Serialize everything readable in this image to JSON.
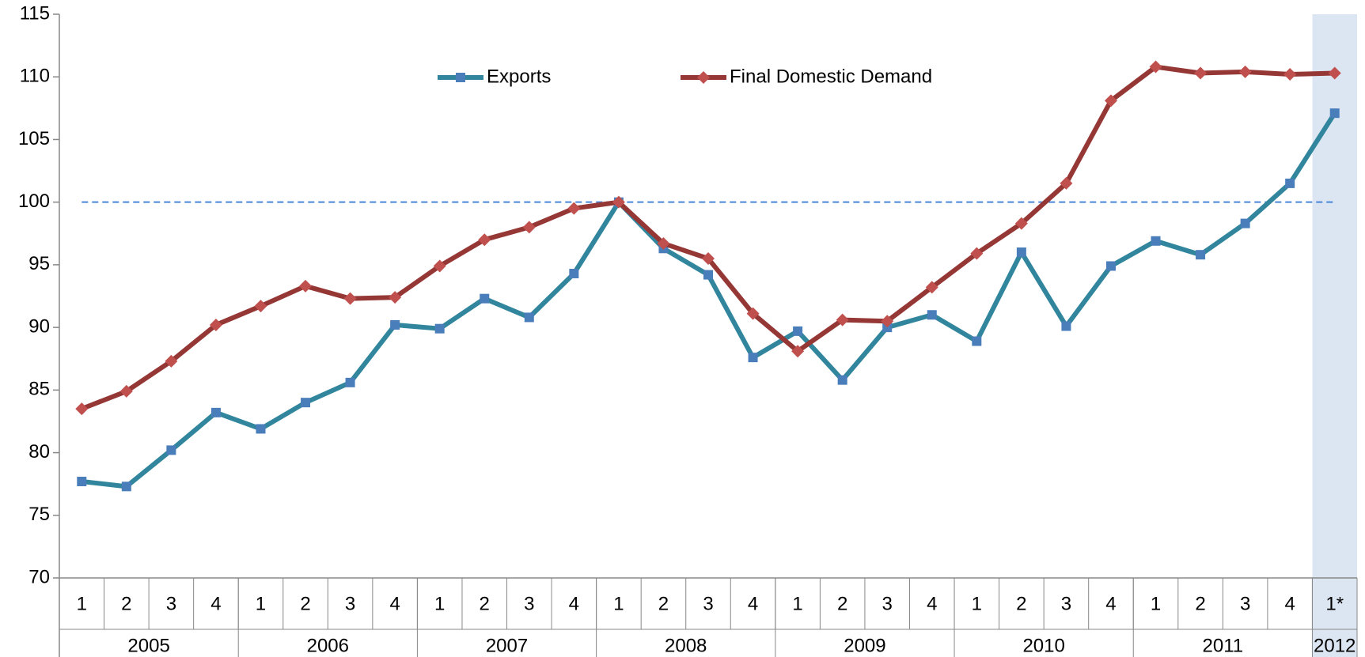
{
  "chart_data": {
    "type": "line",
    "categories": [
      "1",
      "2",
      "3",
      "4",
      "1",
      "2",
      "3",
      "4",
      "1",
      "2",
      "3",
      "4",
      "1",
      "2",
      "3",
      "4",
      "1",
      "2",
      "3",
      "4",
      "1",
      "2",
      "3",
      "4",
      "1",
      "2",
      "3",
      "4",
      "1*"
    ],
    "year_groups": [
      {
        "label": "2005",
        "count": 4
      },
      {
        "label": "2006",
        "count": 4
      },
      {
        "label": "2007",
        "count": 4
      },
      {
        "label": "2008",
        "count": 4
      },
      {
        "label": "2009",
        "count": 4
      },
      {
        "label": "2010",
        "count": 4
      },
      {
        "label": "2011",
        "count": 4
      },
      {
        "label": "2012",
        "count": 1
      }
    ],
    "highlight": "1*",
    "reference_line": 100,
    "ylim": [
      70,
      115
    ],
    "yticks": [
      70,
      75,
      80,
      85,
      90,
      95,
      100,
      105,
      110,
      115
    ],
    "series": [
      {
        "name": "Exports",
        "color": "#31859c",
        "marker_color": "#4a7ebb",
        "marker": "square",
        "values": [
          77.7,
          77.3,
          80.2,
          83.2,
          81.9,
          84.0,
          85.6,
          90.2,
          89.9,
          92.3,
          90.8,
          94.3,
          100.0,
          96.3,
          94.2,
          87.6,
          89.7,
          85.8,
          90.0,
          91.0,
          88.9,
          96.0,
          90.1,
          94.9,
          96.9,
          95.8,
          98.3,
          101.5,
          107.1
        ]
      },
      {
        "name": "Final Domestic Demand",
        "color": "#953735",
        "marker_color": "#c0504d",
        "marker": "diamond",
        "values": [
          83.5,
          84.9,
          87.3,
          90.2,
          91.7,
          93.3,
          92.3,
          92.4,
          94.9,
          97.0,
          98.0,
          99.5,
          100.0,
          96.7,
          95.5,
          91.1,
          88.1,
          90.6,
          90.5,
          93.2,
          95.9,
          98.3,
          101.5,
          108.1,
          110.8,
          110.3,
          110.4,
          110.2,
          110.3
        ]
      }
    ]
  }
}
